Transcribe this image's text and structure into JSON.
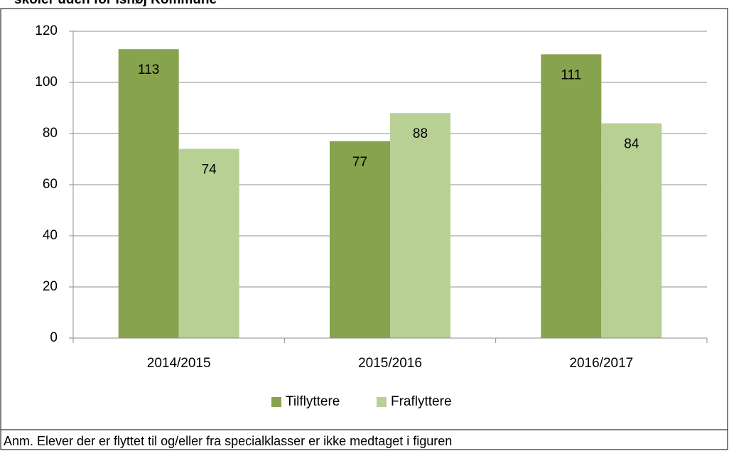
{
  "chart_data": {
    "type": "bar",
    "title": "skoler uden for Ishøj Kommune",
    "note": "Anm. Elever der er flyttet til og/eller fra specialklasser er ikke medtaget i figuren",
    "categories": [
      "2014/2015",
      "2015/2016",
      "2016/2017"
    ],
    "series": [
      {
        "name": "Tilflyttere",
        "color": "#87a34d",
        "values": [
          113,
          77,
          111
        ]
      },
      {
        "name": "Fraflyttere",
        "color": "#b9d095",
        "values": [
          74,
          88,
          84
        ]
      }
    ],
    "ylim": [
      0,
      120
    ],
    "yticks": [
      0,
      20,
      40,
      60,
      80,
      100,
      120
    ],
    "grid": true,
    "legend": "bottom"
  }
}
